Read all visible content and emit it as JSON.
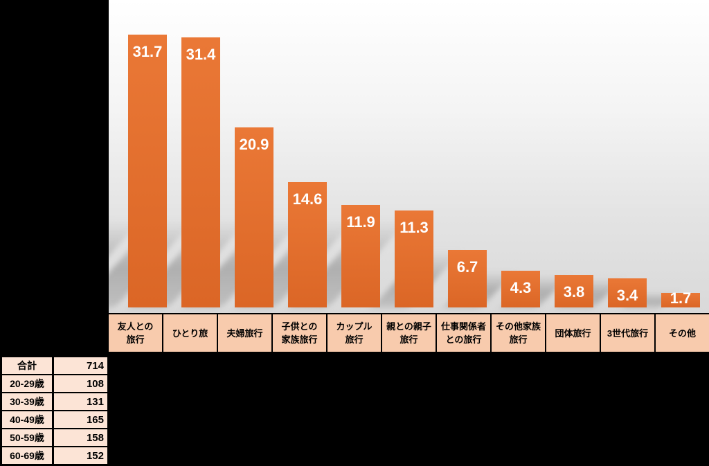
{
  "chart_data": {
    "type": "bar",
    "title": "",
    "xlabel": "",
    "ylabel": "",
    "categories": [
      "友人との\n旅行",
      "ひとり旅",
      "夫婦旅行",
      "子供との\n家族旅行",
      "カップル\n旅行",
      "親との親子\n旅行",
      "仕事関係者\nとの旅行",
      "その他家族\n旅行",
      "団体旅行",
      "3世代旅行",
      "その他"
    ],
    "values": [
      31.7,
      31.4,
      20.9,
      14.6,
      11.9,
      11.3,
      6.7,
      4.3,
      3.8,
      3.4,
      1.7
    ],
    "ylim": [
      0,
      36
    ],
    "grid": false,
    "legend": "none",
    "value_label_decimals": 1,
    "bar_shadow": true
  },
  "summary_table": {
    "rows": [
      {
        "label": "合計",
        "value": "714"
      },
      {
        "label": "20-29歳",
        "value": "108"
      },
      {
        "label": "30-39歳",
        "value": "131"
      },
      {
        "label": "40-49歳",
        "value": "165"
      },
      {
        "label": "50-59歳",
        "value": "158"
      },
      {
        "label": "60-69歳",
        "value": "152"
      }
    ]
  },
  "colors": {
    "page_bg": "#000000",
    "bar_top": "#EA7836",
    "bar_bottom": "#DB6626",
    "value_label": "#FFFFFF",
    "band_bg": "#F8CBAD",
    "band_border": "#000000",
    "band_text": "#000000",
    "plot_top": "#FFFFFF",
    "plot_bottom": "#D9D9D9",
    "table_bg": "#FCE4D6",
    "table_border": "#000000",
    "table_text": "#000000"
  }
}
